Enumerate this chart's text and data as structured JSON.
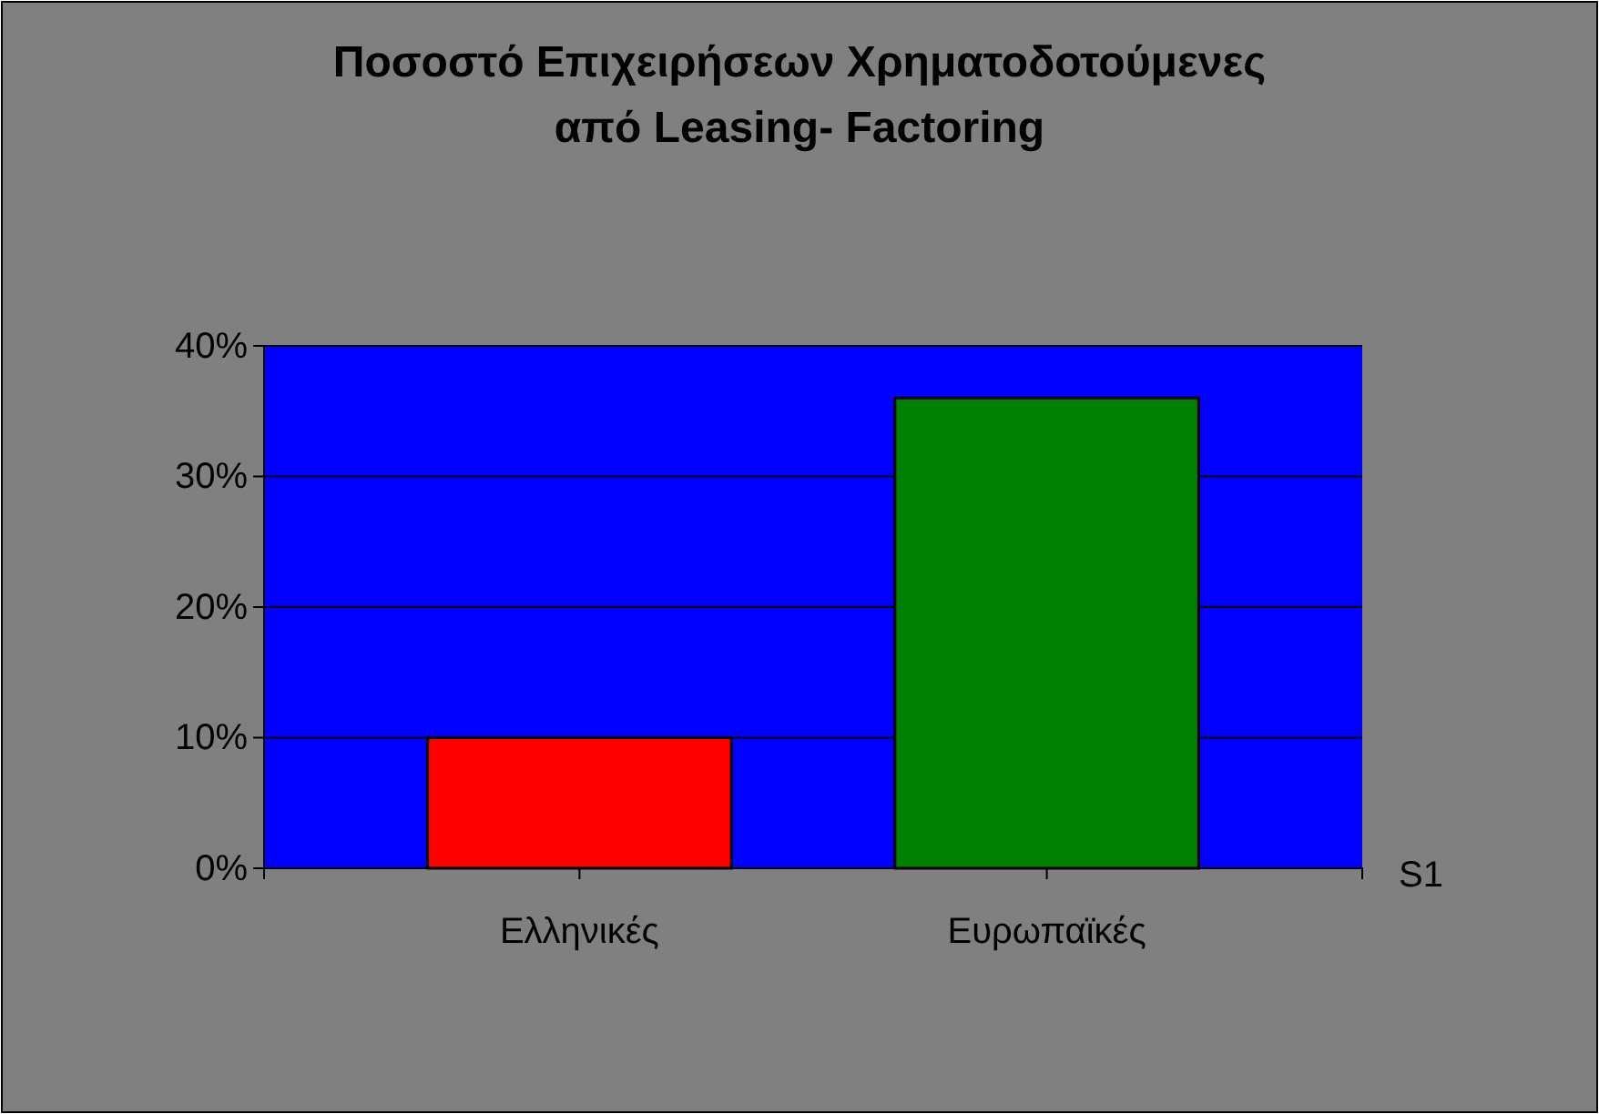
{
  "chart_data": {
    "type": "bar",
    "title": "Ποσοστό Επιχειρήσεων Χρηματοδοτούμενες\nαπό Leasing- Factoring",
    "categories": [
      "Ελληνικές",
      "Ευρωπαϊκές"
    ],
    "series": [
      {
        "name": "S1",
        "colors": [
          "#ff0000",
          "#008000"
        ],
        "values": [
          10,
          36
        ]
      }
    ],
    "ylim": [
      0,
      40
    ],
    "yticks": [
      {
        "value": 0,
        "label": "0%"
      },
      {
        "value": 10,
        "label": "10%"
      },
      {
        "value": 20,
        "label": "20%"
      },
      {
        "value": 30,
        "label": "30%"
      },
      {
        "value": 40,
        "label": "40%"
      }
    ],
    "grid": "y"
  }
}
